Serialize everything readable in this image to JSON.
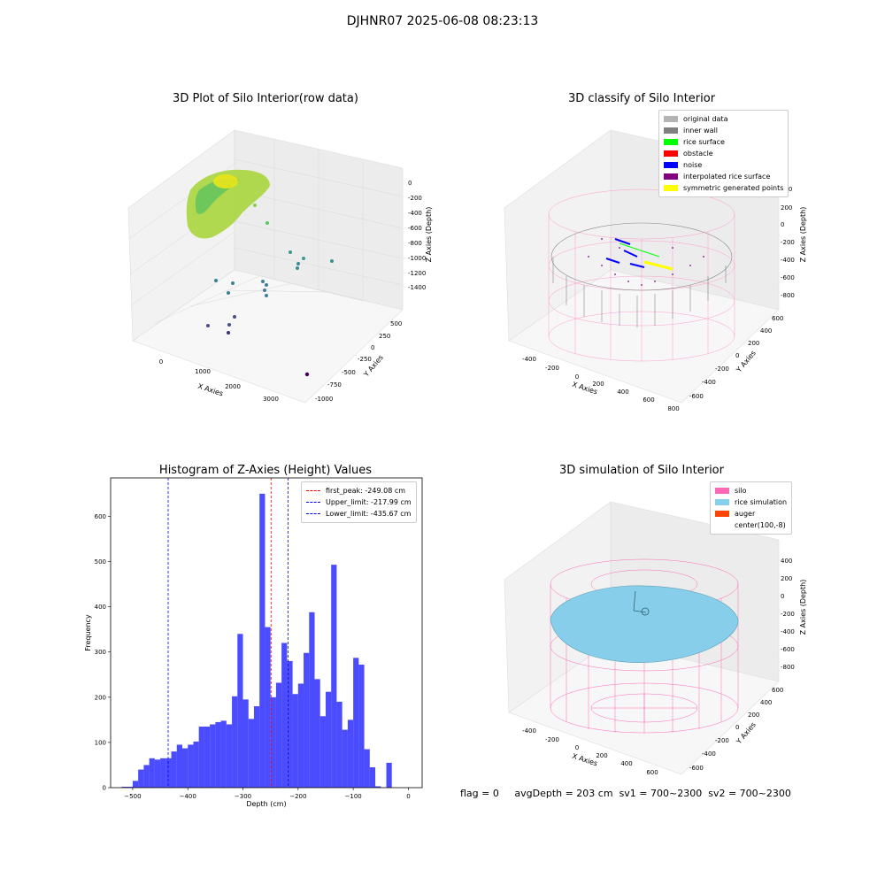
{
  "suptitle": "DJHNR07 2025-06-08 08:23:13",
  "panels": {
    "raw": {
      "title": "3D Plot of Silo Interior(row data)",
      "x_label": "X Axies",
      "y_label": "Y Axies",
      "z_label": "Z Axies (Depth)",
      "x_ticks": [
        "0",
        "1000",
        "2000",
        "3000"
      ],
      "y_ticks": [
        "500",
        "250",
        "0",
        "-250",
        "-500",
        "-750",
        "-1000"
      ],
      "z_ticks": [
        "0",
        "-200",
        "-400",
        "-600",
        "-800",
        "-1000",
        "-1200",
        "-1400"
      ]
    },
    "classify": {
      "title": "3D classify of Silo Interior",
      "x_label": "X Axies",
      "y_label": "Y Axies",
      "z_label": "Z Axies (Depth)",
      "x_ticks": [
        "-400",
        "-200",
        "0",
        "200",
        "400",
        "600",
        "800"
      ],
      "y_ticks": [
        "600",
        "400",
        "200",
        "0",
        "-200",
        "-400",
        "-600"
      ],
      "z_ticks": [
        "400",
        "200",
        "0",
        "-200",
        "-400",
        "-600",
        "-800"
      ],
      "legend": [
        {
          "label": "original data",
          "color": "#b3b3b3"
        },
        {
          "label": "inner wall",
          "color": "#808080"
        },
        {
          "label": "rice surface",
          "color": "#00ff00"
        },
        {
          "label": "obstacle",
          "color": "#ff0000"
        },
        {
          "label": "noise",
          "color": "#0000ff"
        },
        {
          "label": "interpolated rice surface",
          "color": "#800080"
        },
        {
          "label": "symmetric generated points",
          "color": "#ffff00"
        }
      ]
    },
    "simulation": {
      "title": "3D simulation of Silo Interior",
      "x_label": "X Axies",
      "y_label": "Y Axies",
      "z_label": "Z Axies (Depth)",
      "x_ticks": [
        "-400",
        "-200",
        "0",
        "200",
        "400",
        "600"
      ],
      "y_ticks": [
        "600",
        "400",
        "200",
        "0",
        "-200",
        "-400",
        "-600"
      ],
      "z_ticks": [
        "400",
        "200",
        "0",
        "-200",
        "-400",
        "-600",
        "-800"
      ],
      "legend": [
        {
          "label": "silo",
          "color": "#ff69b4"
        },
        {
          "label": "rice simulation",
          "color": "#87ceeb"
        },
        {
          "label": "auger",
          "color": "#ff4500"
        },
        {
          "label": "center(100,-8)",
          "color": ""
        }
      ]
    }
  },
  "chart_data": [
    {
      "type": "bar",
      "title": "Histogram of Z-Axies (Height) Values",
      "xlabel": "Depth (cm)",
      "ylabel": "Frequency",
      "xlim": [
        -540,
        25
      ],
      "ylim": [
        0,
        685
      ],
      "x_ticks": [
        -500,
        -400,
        -300,
        -200,
        -100,
        0
      ],
      "y_ticks": [
        0,
        100,
        200,
        300,
        400,
        500,
        600
      ],
      "bar_color": "#0000ff",
      "bin_width": 10,
      "bin_starts": [
        -520,
        -510,
        -500,
        -490,
        -480,
        -470,
        -460,
        -450,
        -440,
        -430,
        -420,
        -410,
        -400,
        -390,
        -380,
        -370,
        -360,
        -350,
        -340,
        -330,
        -320,
        -310,
        -300,
        -290,
        -280,
        -270,
        -260,
        -250,
        -240,
        -230,
        -220,
        -210,
        -200,
        -190,
        -180,
        -170,
        -160,
        -150,
        -140,
        -130,
        -120,
        -110,
        -100,
        -90,
        -80,
        -70,
        -60,
        -50,
        -40,
        -30,
        -20,
        -10,
        0
      ],
      "values": [
        2,
        2,
        15,
        40,
        50,
        65,
        62,
        65,
        65,
        80,
        95,
        87,
        95,
        102,
        135,
        135,
        140,
        145,
        148,
        140,
        202,
        340,
        195,
        152,
        180,
        650,
        355,
        200,
        232,
        320,
        280,
        207,
        230,
        298,
        388,
        240,
        158,
        212,
        493,
        190,
        128,
        150,
        287,
        272,
        85,
        45,
        3,
        0,
        55,
        0,
        0,
        0,
        0
      ],
      "lines": [
        {
          "label": "first_peak: -249.08 cm",
          "x": -249.08,
          "color": "#ff0000"
        },
        {
          "label": "Upper_limit: -217.99 cm",
          "x": -217.99,
          "color": "#0000ff"
        },
        {
          "label": "Lower_limit: -435.67 cm",
          "x": -435.67,
          "color": "#0000ff"
        }
      ]
    }
  ],
  "footer": {
    "flag": "flag = 0",
    "avg": "avgDepth = 203 cm",
    "sv1": "sv1 = 700~2300",
    "sv2": "sv2 = 700~2300"
  }
}
